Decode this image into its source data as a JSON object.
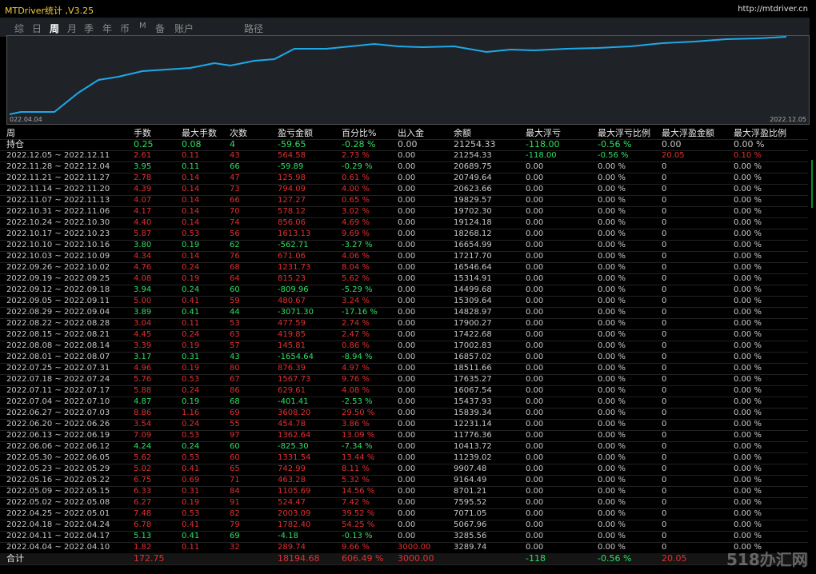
{
  "header": {
    "title": "MTDriver统计 ,V3.25",
    "url": "http://mtdriver.cn"
  },
  "tabs": [
    "综",
    "日",
    "周",
    "月",
    "季",
    "年",
    "币",
    "M",
    "备",
    "账户",
    "路径"
  ],
  "chart": {
    "start_label": "022.04.04",
    "end_label": "2022.12.05"
  },
  "table": {
    "header": [
      "周",
      "手数",
      "最大手数",
      "次数",
      "盈亏金额",
      "百分比%",
      "出入金",
      "余额",
      "最大浮亏",
      "最大浮亏比例",
      "最大浮盈金额",
      "最大浮盈比例"
    ],
    "position_row": [
      "持仓",
      "0.25",
      "0.08",
      "4",
      "-59.65",
      "-0.28 %",
      "0.00",
      "21254.33",
      "-118.00",
      "-0.56 %",
      "0.00",
      "0.00 %"
    ],
    "rows": [
      [
        "2022.12.05 ~ 2022.12.11",
        "2.61",
        "0.11",
        "43",
        "564.58",
        "2.73 %",
        "0.00",
        "21254.33",
        "-118.00",
        "-0.56 %",
        "20.05",
        "0.10 %"
      ],
      [
        "2022.11.28 ~ 2022.12.04",
        "3.95",
        "0.11",
        "66",
        "-59.89",
        "-0.29 %",
        "0.00",
        "20689.75",
        "0.00",
        "0.00 %",
        "0",
        "0.00 %"
      ],
      [
        "2022.11.21 ~ 2022.11.27",
        "2.78",
        "0.14",
        "47",
        "125.98",
        "0.61 %",
        "0.00",
        "20749.64",
        "0.00",
        "0.00 %",
        "0",
        "0.00 %"
      ],
      [
        "2022.11.14 ~ 2022.11.20",
        "4.39",
        "0.14",
        "73",
        "794.09",
        "4.00 %",
        "0.00",
        "20623.66",
        "0.00",
        "0.00 %",
        "0",
        "0.00 %"
      ],
      [
        "2022.11.07 ~ 2022.11.13",
        "4.07",
        "0.14",
        "66",
        "127.27",
        "0.65 %",
        "0.00",
        "19829.57",
        "0.00",
        "0.00 %",
        "0",
        "0.00 %"
      ],
      [
        "2022.10.31 ~ 2022.11.06",
        "4.17",
        "0.14",
        "70",
        "578.12",
        "3.02 %",
        "0.00",
        "19702.30",
        "0.00",
        "0.00 %",
        "0",
        "0.00 %"
      ],
      [
        "2022.10.24 ~ 2022.10.30",
        "4.40",
        "0.14",
        "74",
        "856.06",
        "4.69 %",
        "0.00",
        "19124.18",
        "0.00",
        "0.00 %",
        "0",
        "0.00 %"
      ],
      [
        "2022.10.17 ~ 2022.10.23",
        "5.87",
        "0.53",
        "56",
        "1613.13",
        "9.69 %",
        "0.00",
        "18268.12",
        "0.00",
        "0.00 %",
        "0",
        "0.00 %"
      ],
      [
        "2022.10.10 ~ 2022.10.16",
        "3.80",
        "0.19",
        "62",
        "-562.71",
        "-3.27 %",
        "0.00",
        "16654.99",
        "0.00",
        "0.00 %",
        "0",
        "0.00 %"
      ],
      [
        "2022.10.03 ~ 2022.10.09",
        "4.34",
        "0.14",
        "76",
        "671.06",
        "4.06 %",
        "0.00",
        "17217.70",
        "0.00",
        "0.00 %",
        "0",
        "0.00 %"
      ],
      [
        "2022.09.26 ~ 2022.10.02",
        "4.76",
        "0.24",
        "68",
        "1231.73",
        "8.04 %",
        "0.00",
        "16546.64",
        "0.00",
        "0.00 %",
        "0",
        "0.00 %"
      ],
      [
        "2022.09.19 ~ 2022.09.25",
        "4.08",
        "0.19",
        "64",
        "815.23",
        "5.62 %",
        "0.00",
        "15314.91",
        "0.00",
        "0.00 %",
        "0",
        "0.00 %"
      ],
      [
        "2022.09.12 ~ 2022.09.18",
        "3.94",
        "0.24",
        "60",
        "-809.96",
        "-5.29 %",
        "0.00",
        "14499.68",
        "0.00",
        "0.00 %",
        "0",
        "0.00 %"
      ],
      [
        "2022.09.05 ~ 2022.09.11",
        "5.00",
        "0.41",
        "59",
        "480.67",
        "3.24 %",
        "0.00",
        "15309.64",
        "0.00",
        "0.00 %",
        "0",
        "0.00 %"
      ],
      [
        "2022.08.29 ~ 2022.09.04",
        "3.89",
        "0.41",
        "44",
        "-3071.30",
        "-17.16 %",
        "0.00",
        "14828.97",
        "0.00",
        "0.00 %",
        "0",
        "0.00 %"
      ],
      [
        "2022.08.22 ~ 2022.08.28",
        "3.04",
        "0.11",
        "53",
        "477.59",
        "2.74 %",
        "0.00",
        "17900.27",
        "0.00",
        "0.00 %",
        "0",
        "0.00 %"
      ],
      [
        "2022.08.15 ~ 2022.08.21",
        "4.45",
        "0.24",
        "63",
        "419.85",
        "2.47 %",
        "0.00",
        "17422.68",
        "0.00",
        "0.00 %",
        "0",
        "0.00 %"
      ],
      [
        "2022.08.08 ~ 2022.08.14",
        "3.39",
        "0.19",
        "57",
        "145.81",
        "0.86 %",
        "0.00",
        "17002.83",
        "0.00",
        "0.00 %",
        "0",
        "0.00 %"
      ],
      [
        "2022.08.01 ~ 2022.08.07",
        "3.17",
        "0.31",
        "43",
        "-1654.64",
        "-8.94 %",
        "0.00",
        "16857.02",
        "0.00",
        "0.00 %",
        "0",
        "0.00 %"
      ],
      [
        "2022.07.25 ~ 2022.07.31",
        "4.96",
        "0.19",
        "80",
        "876.39",
        "4.97 %",
        "0.00",
        "18511.66",
        "0.00",
        "0.00 %",
        "0",
        "0.00 %"
      ],
      [
        "2022.07.18 ~ 2022.07.24",
        "5.76",
        "0.53",
        "67",
        "1567.73",
        "9.76 %",
        "0.00",
        "17635.27",
        "0.00",
        "0.00 %",
        "0",
        "0.00 %"
      ],
      [
        "2022.07.11 ~ 2022.07.17",
        "5.88",
        "0.24",
        "86",
        "629.61",
        "4.08 %",
        "0.00",
        "16067.54",
        "0.00",
        "0.00 %",
        "0",
        "0.00 %"
      ],
      [
        "2022.07.04 ~ 2022.07.10",
        "4.87",
        "0.19",
        "68",
        "-401.41",
        "-2.53 %",
        "0.00",
        "15437.93",
        "0.00",
        "0.00 %",
        "0",
        "0.00 %"
      ],
      [
        "2022.06.27 ~ 2022.07.03",
        "8.86",
        "1.16",
        "69",
        "3608.20",
        "29.50 %",
        "0.00",
        "15839.34",
        "0.00",
        "0.00 %",
        "0",
        "0.00 %"
      ],
      [
        "2022.06.20 ~ 2022.06.26",
        "3.54",
        "0.24",
        "55",
        "454.78",
        "3.86 %",
        "0.00",
        "12231.14",
        "0.00",
        "0.00 %",
        "0",
        "0.00 %"
      ],
      [
        "2022.06.13 ~ 2022.06.19",
        "7.09",
        "0.53",
        "97",
        "1362.64",
        "13.09 %",
        "0.00",
        "11776.36",
        "0.00",
        "0.00 %",
        "0",
        "0.00 %"
      ],
      [
        "2022.06.06 ~ 2022.06.12",
        "4.24",
        "0.24",
        "60",
        "-825.30",
        "-7.34 %",
        "0.00",
        "10413.72",
        "0.00",
        "0.00 %",
        "0",
        "0.00 %"
      ],
      [
        "2022.05.30 ~ 2022.06.05",
        "5.62",
        "0.53",
        "60",
        "1331.54",
        "13.44 %",
        "0.00",
        "11239.02",
        "0.00",
        "0.00 %",
        "0",
        "0.00 %"
      ],
      [
        "2022.05.23 ~ 2022.05.29",
        "5.02",
        "0.41",
        "65",
        "742.99",
        "8.11 %",
        "0.00",
        "9907.48",
        "0.00",
        "0.00 %",
        "0",
        "0.00 %"
      ],
      [
        "2022.05.16 ~ 2022.05.22",
        "6.75",
        "0.69",
        "71",
        "463.28",
        "5.32 %",
        "0.00",
        "9164.49",
        "0.00",
        "0.00 %",
        "0",
        "0.00 %"
      ],
      [
        "2022.05.09 ~ 2022.05.15",
        "6.33",
        "0.31",
        "84",
        "1105.69",
        "14.56 %",
        "0.00",
        "8701.21",
        "0.00",
        "0.00 %",
        "0",
        "0.00 %"
      ],
      [
        "2022.05.02 ~ 2022.05.08",
        "6.27",
        "0.19",
        "91",
        "524.47",
        "7.42 %",
        "0.00",
        "7595.52",
        "0.00",
        "0.00 %",
        "0",
        "0.00 %"
      ],
      [
        "2022.04.25 ~ 2022.05.01",
        "7.48",
        "0.53",
        "82",
        "2003.09",
        "39.52 %",
        "0.00",
        "7071.05",
        "0.00",
        "0.00 %",
        "0",
        "0.00 %"
      ],
      [
        "2022.04.18 ~ 2022.04.24",
        "6.78",
        "0.41",
        "79",
        "1782.40",
        "54.25 %",
        "0.00",
        "5067.96",
        "0.00",
        "0.00 %",
        "0",
        "0.00 %"
      ],
      [
        "2022.04.11 ~ 2022.04.17",
        "5.13",
        "0.41",
        "69",
        "-4.18",
        "-0.13 %",
        "0.00",
        "3285.56",
        "0.00",
        "0.00 %",
        "0",
        "0.00 %"
      ],
      [
        "2022.04.04 ~ 2022.04.10",
        "1.82",
        "0.11",
        "32",
        "289.74",
        "9.66 %",
        "3000.00",
        "3289.74",
        "0.00",
        "0.00 %",
        "0",
        "0.00 %"
      ]
    ],
    "total": [
      "合计",
      "172.75",
      null,
      null,
      "18194.68",
      "606.49 %",
      "3000.00",
      null,
      "-118",
      "-0.56 %",
      "20.05",
      null
    ]
  },
  "watermark": "518办汇网"
}
